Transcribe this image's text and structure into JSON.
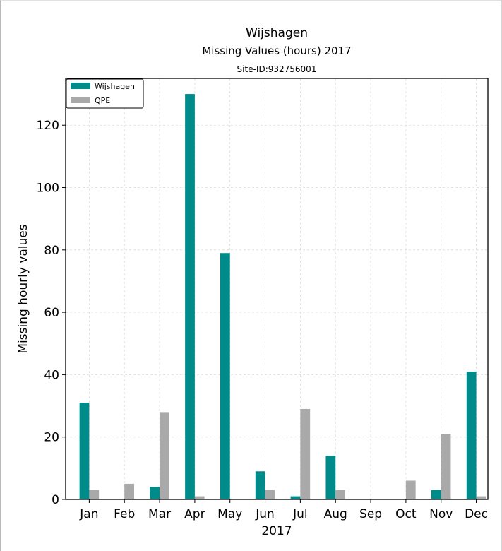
{
  "chart_data": {
    "type": "bar",
    "title": "Wijshagen",
    "subtitle": "Missing Values (hours) 2017",
    "site_label": "Site-ID:932756001",
    "xlabel": "2017",
    "ylabel": "Missing hourly values",
    "categories": [
      "Jan",
      "Feb",
      "Mar",
      "Apr",
      "May",
      "Jun",
      "Jul",
      "Aug",
      "Sep",
      "Oct",
      "Nov",
      "Dec"
    ],
    "series": [
      {
        "name": "Wijshagen",
        "color": "#008b8b",
        "values": [
          31,
          0,
          4,
          130,
          79,
          9,
          1,
          14,
          0,
          0,
          3,
          41
        ]
      },
      {
        "name": "QPE",
        "color": "#a9a9a9",
        "values": [
          3,
          5,
          28,
          1,
          0,
          3,
          29,
          3,
          0,
          6,
          21,
          1
        ]
      }
    ],
    "ylim": [
      0,
      135
    ],
    "yticks": [
      0,
      20,
      40,
      60,
      80,
      100,
      120
    ],
    "grid": true,
    "legend_position": "top-left"
  }
}
